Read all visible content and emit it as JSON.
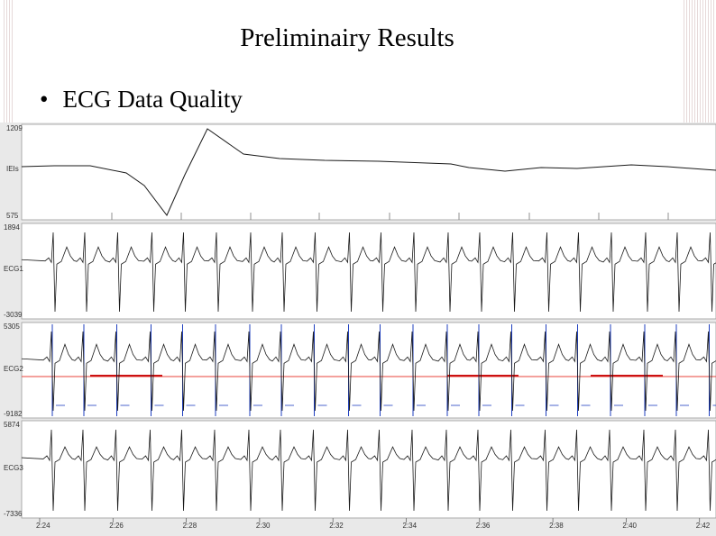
{
  "slide": {
    "title": "Preliminairy Results",
    "bullet_marker": "•",
    "bullet_text": "ECG Data Quality"
  },
  "colors": {
    "panel_bg": "#ffffff",
    "trace": "#1a1a1a",
    "r_peak_marker": "#1f3fbf",
    "baseline": "#e8433b",
    "red_segment": "#cc1111",
    "axis_bg": "#e9e9e9"
  },
  "chart_data": [
    {
      "type": "line",
      "series": [
        {
          "name": "IEIs"
        }
      ],
      "ylabel": "IEIs",
      "ylim_labels": [
        "575",
        "1209"
      ],
      "description_values": "trace mostly flat with one deep dip and spike"
    },
    {
      "type": "line",
      "series": [
        {
          "name": "ECG1"
        }
      ],
      "ylabel": "ECG1",
      "ylim_labels": [
        "-3039",
        "1894"
      ]
    },
    {
      "type": "line",
      "series": [
        {
          "name": "ECG2"
        }
      ],
      "ylabel": "ECG2",
      "ylim_labels": [
        "-9182",
        "5305"
      ]
    },
    {
      "type": "line",
      "series": [
        {
          "name": "ECG3"
        }
      ],
      "ylabel": "ECG3",
      "ylim_labels": [
        "-7336",
        "5874"
      ]
    }
  ],
  "x_axis": {
    "tick_labels": [
      "2:24",
      "2:26",
      "2:28",
      "2:30",
      "2:32",
      "2:34",
      "2:36",
      "2:38",
      "2:40",
      "2:42"
    ]
  },
  "labels": {
    "ieis_top": "1209",
    "ieis_name": "IEIs",
    "ieis_bottom": "575",
    "ecg1_top": "1894",
    "ecg1_name": "ECG1",
    "ecg1_bottom": "-3039",
    "ecg2_top": "5305",
    "ecg2_name": "ECG2",
    "ecg2_bottom": "-9182",
    "ecg3_top": "5874",
    "ecg3_name": "ECG3",
    "ecg3_bottom": "-7336"
  }
}
